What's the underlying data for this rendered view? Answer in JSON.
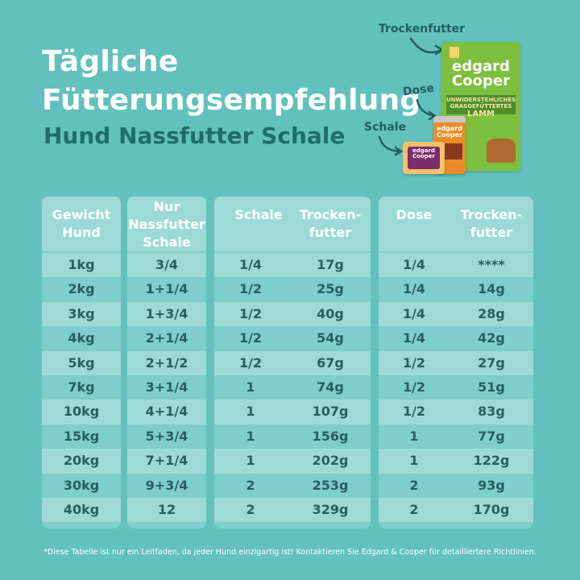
{
  "title": {
    "line1": "Tägliche",
    "line2": "Fütterungsempfehlung",
    "subtitle": "Hund Nassfutter Schale"
  },
  "product_labels": {
    "trockenfutter": "Trockenfutter",
    "dose": "Dose",
    "schale": "Schale"
  },
  "product_packaging": {
    "bag_brand_line1": "edgard",
    "bag_brand_line2": "Cooper",
    "bag_band_line1": "UNWIDERSTEHLICHES",
    "bag_band_line2": "GRASGEFÜTTERTES",
    "bag_band_line3": "LAMM",
    "can_brand_line1": "edgard",
    "can_brand_line2": "Cooper",
    "tray_brand_line1": "edgard",
    "tray_brand_line2": "Cooper",
    "colors": {
      "bag": "#7fbf3f",
      "can": "#ec8c29",
      "tray": "#f7c16b"
    }
  },
  "table1": {
    "headers": {
      "gewicht_line1": "Gewicht",
      "gewicht_line2": "Hund",
      "nur_line1": "Nur",
      "nur_line2": "Nassfutter",
      "nur_line3": "Schale"
    },
    "rows": [
      {
        "gewicht": "1kg",
        "nur_schale": "3/4"
      },
      {
        "gewicht": "2kg",
        "nur_schale": "1+1/4"
      },
      {
        "gewicht": "3kg",
        "nur_schale": "1+3/4"
      },
      {
        "gewicht": "4kg",
        "nur_schale": "2+1/4"
      },
      {
        "gewicht": "5kg",
        "nur_schale": "2+1/2"
      },
      {
        "gewicht": "7kg",
        "nur_schale": "3+1/4"
      },
      {
        "gewicht": "10kg",
        "nur_schale": "4+1/4"
      },
      {
        "gewicht": "15kg",
        "nur_schale": "5+3/4"
      },
      {
        "gewicht": "20kg",
        "nur_schale": "7+1/4"
      },
      {
        "gewicht": "30kg",
        "nur_schale": "9+3/4"
      },
      {
        "gewicht": "40kg",
        "nur_schale": "12"
      }
    ]
  },
  "table2": {
    "headers": {
      "schale": "Schale",
      "trocken_line1": "Trocken-",
      "trocken_line2": "futter"
    },
    "rows": [
      {
        "schale": "1/4",
        "trocken": "17g"
      },
      {
        "schale": "1/2",
        "trocken": "25g"
      },
      {
        "schale": "1/2",
        "trocken": "40g"
      },
      {
        "schale": "1/2",
        "trocken": "54g"
      },
      {
        "schale": "1/2",
        "trocken": "67g"
      },
      {
        "schale": "1",
        "trocken": "74g"
      },
      {
        "schale": "1",
        "trocken": "107g"
      },
      {
        "schale": "1",
        "trocken": "156g"
      },
      {
        "schale": "1",
        "trocken": "202g"
      },
      {
        "schale": "2",
        "trocken": "253g"
      },
      {
        "schale": "2",
        "trocken": "329g"
      }
    ]
  },
  "table3": {
    "headers": {
      "dose": "Dose",
      "trocken_line1": "Trocken-",
      "trocken_line2": "futter"
    },
    "rows": [
      {
        "dose": "1/4",
        "trocken": "****"
      },
      {
        "dose": "1/4",
        "trocken": "14g"
      },
      {
        "dose": "1/4",
        "trocken": "28g"
      },
      {
        "dose": "1/4",
        "trocken": "42g"
      },
      {
        "dose": "1/2",
        "trocken": "27g"
      },
      {
        "dose": "1/2",
        "trocken": "51g"
      },
      {
        "dose": "1/2",
        "trocken": "83g"
      },
      {
        "dose": "1",
        "trocken": "77g"
      },
      {
        "dose": "1",
        "trocken": "122g"
      },
      {
        "dose": "2",
        "trocken": "93g"
      },
      {
        "dose": "2",
        "trocken": "170g"
      }
    ]
  },
  "footnote": "*Diese Tabelle ist nur ein Leitfaden, da jeder Hund einzigartig ist! Kontaktieren Sie Edgard & Cooper für detailliertere Richtlinien.",
  "colors": {
    "background": "#63c1bd",
    "header_bg": "#9ddad6",
    "row_light": "#9ddad6",
    "row_dark": "#7fcecb",
    "title_text": "#ffffff",
    "subtitle_text": "#1f6c6f",
    "cell_text": "#265f61"
  }
}
